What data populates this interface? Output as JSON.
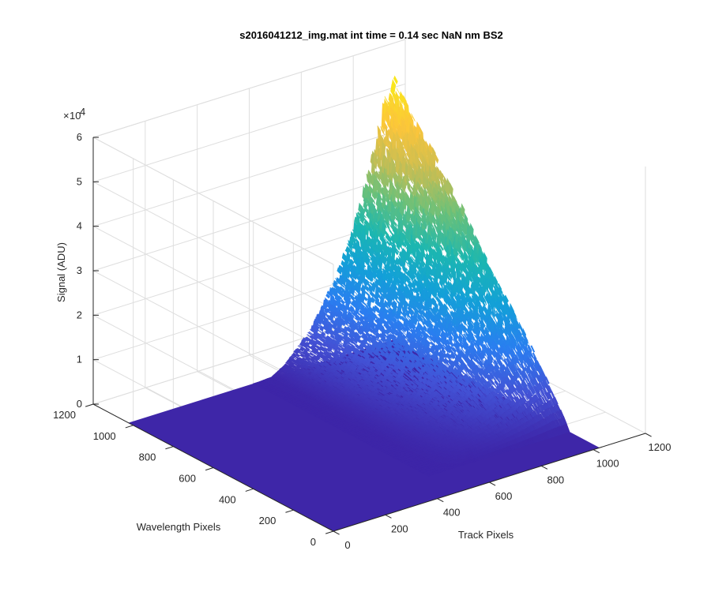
{
  "chart_data": {
    "type": "surface",
    "title": "s2016041212_img.mat int time = 0.14 sec  NaN nm BS2",
    "xlabel": "Track Pixels",
    "ylabel": "Wavelength Pixels",
    "zlabel": "Signal (ADU)",
    "z_exponent": "4",
    "xlim": [
      0,
      1200
    ],
    "ylim": [
      0,
      1200
    ],
    "zlim": [
      0,
      60000
    ],
    "x_ticks": [
      "0",
      "200",
      "400",
      "600",
      "800",
      "1000",
      "1200"
    ],
    "y_ticks": [
      "0",
      "200",
      "400",
      "600",
      "800",
      "1000",
      "1200"
    ],
    "z_ticks": [
      "0",
      "1",
      "2",
      "3",
      "4",
      "5",
      "6"
    ],
    "grid": true,
    "colormap": [
      "#3e26a8",
      "#4353d6",
      "#2a7ef0",
      "#13a0d8",
      "#1cb7b0",
      "#68c07b",
      "#c9be53",
      "#fcc53b",
      "#f9e61c"
    ],
    "surface_profile": {
      "track_pixels": [
        0,
        100,
        200,
        300,
        400,
        450,
        500,
        550,
        600,
        700,
        800,
        880,
        940,
        980,
        1024
      ],
      "signal_at_peak_row": [
        0,
        0,
        0,
        0,
        0,
        0,
        0,
        200,
        2000,
        8000,
        18000,
        30000,
        42000,
        52000,
        56000
      ],
      "wavelength_peak_row": 1024,
      "wavelength_falloff_end": 150
    }
  }
}
